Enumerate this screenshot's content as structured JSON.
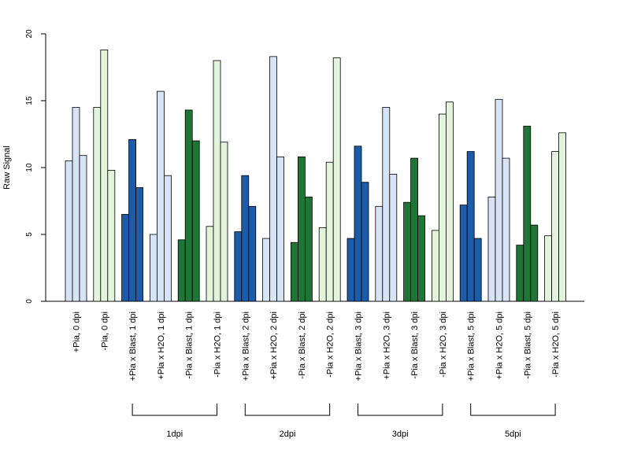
{
  "chart_data": {
    "type": "bar",
    "title": "",
    "xlabel": "",
    "ylabel": "Raw Signal",
    "ylim": [
      0,
      20
    ],
    "yticks": [
      0,
      5,
      10,
      15,
      20
    ],
    "grid": false,
    "legend": "none",
    "categories": [
      "+Pia, 0 dpi",
      "-Pia, 0 dpi",
      "+Pia x Blast, 1 dpi",
      "+Pia x H2O, 1 dpi",
      "-Pia x Blast, 1 dpi",
      "-Pia x H2O, 1 dpi",
      "+Pia x Blast, 2 dpi",
      "+Pia x H2O, 2 dpi",
      "-Pia x Blast, 2 dpi",
      "-Pia x H2O, 2 dpi",
      "+Pia x Blast, 3 dpi",
      "+Pia x H2O, 3 dpi",
      "-Pia x Blast, 3 dpi",
      "-Pia x H2O, 3 dpi",
      "+Pia x Blast, 5 dpi",
      "+Pia x H2O, 5 dpi",
      "-Pia x Blast, 5 dpi",
      "-Pia x H2O, 5 dpi"
    ],
    "category_colors": [
      "#d6e4f5",
      "#e2f4dc",
      "#1c5ba8",
      "#d6e4f5",
      "#1f7535",
      "#e2f4dc",
      "#1c5ba8",
      "#d6e4f5",
      "#1f7535",
      "#e2f4dc",
      "#1c5ba8",
      "#d6e4f5",
      "#1f7535",
      "#e2f4dc",
      "#1c5ba8",
      "#d6e4f5",
      "#1f7535",
      "#e2f4dc"
    ],
    "values": [
      [
        10.5,
        14.5,
        10.9
      ],
      [
        14.5,
        18.8,
        9.8
      ],
      [
        6.5,
        12.1,
        8.5
      ],
      [
        5.0,
        15.7,
        9.4
      ],
      [
        4.6,
        14.3,
        12.0
      ],
      [
        5.6,
        18.0,
        11.9
      ],
      [
        5.2,
        9.4,
        7.1
      ],
      [
        4.7,
        18.3,
        10.8
      ],
      [
        4.4,
        10.8,
        7.8
      ],
      [
        5.5,
        10.4,
        18.2
      ],
      [
        4.7,
        11.6,
        8.9
      ],
      [
        7.1,
        14.5,
        9.5
      ],
      [
        7.4,
        10.7,
        6.4
      ],
      [
        5.3,
        14.0,
        14.9
      ],
      [
        7.2,
        11.2,
        4.7
      ],
      [
        7.8,
        15.1,
        10.7
      ],
      [
        4.2,
        13.1,
        5.7
      ],
      [
        4.9,
        11.2,
        12.6
      ]
    ],
    "groups": [
      {
        "label": "1dpi",
        "from": 2,
        "to": 5
      },
      {
        "label": "2dpi",
        "from": 6,
        "to": 9
      },
      {
        "label": "3dpi",
        "from": 10,
        "to": 13
      },
      {
        "label": "5dpi",
        "from": 14,
        "to": 17
      }
    ]
  }
}
